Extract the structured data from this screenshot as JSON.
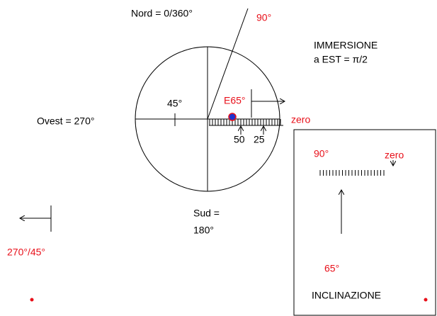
{
  "compass": {
    "north": "Nord = 0/360°",
    "west": "Ovest = 270°",
    "south_1": "Sud =",
    "south_2": "180°",
    "dip_angle": "90°",
    "angle_45": "45°",
    "strike": "E65°",
    "zero": "zero",
    "tick_50": "50",
    "tick_25": "25"
  },
  "header": {
    "line_1": "IMMERSIONE",
    "line_2": "a EST = π/2"
  },
  "bottom_left": {
    "label": "270°/45°"
  },
  "panel": {
    "label_90": "90°",
    "zero": "zero",
    "label_65": "65°",
    "title": "INCLINAZIONE"
  }
}
